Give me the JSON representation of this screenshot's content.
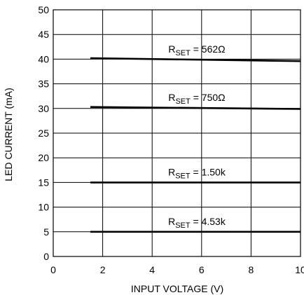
{
  "chart_data": {
    "type": "line",
    "xlabel": "INPUT VOLTAGE (V)",
    "ylabel": "LED CURRENT (mA)",
    "xlim": [
      0,
      10
    ],
    "ylim": [
      0,
      50
    ],
    "xticks": [
      0,
      2,
      4,
      6,
      8,
      10
    ],
    "yticks": [
      0,
      5,
      10,
      15,
      20,
      25,
      30,
      35,
      40,
      45,
      50
    ],
    "grid": true,
    "line_color": "#000000",
    "series": [
      {
        "name": "R_SET = 562Ω",
        "label_main": "R",
        "label_sub": "SET",
        "label_value": " = 562Ω",
        "x": [
          1.5,
          10
        ],
        "y": [
          40.2,
          39.6
        ]
      },
      {
        "name": "R_SET = 750Ω",
        "label_main": "R",
        "label_sub": "SET",
        "label_value": " = 750Ω",
        "x": [
          1.5,
          10
        ],
        "y": [
          30.3,
          29.9
        ]
      },
      {
        "name": "R_SET = 1.50k",
        "label_main": "R",
        "label_sub": "SET",
        "label_value": " = 1.50k",
        "x": [
          1.5,
          10
        ],
        "y": [
          15.0,
          15.0
        ]
      },
      {
        "name": "R_SET = 4.53k",
        "label_main": "R",
        "label_sub": "SET",
        "label_value": " = 4.53k",
        "x": [
          1.5,
          10
        ],
        "y": [
          5.0,
          5.0
        ]
      }
    ]
  }
}
